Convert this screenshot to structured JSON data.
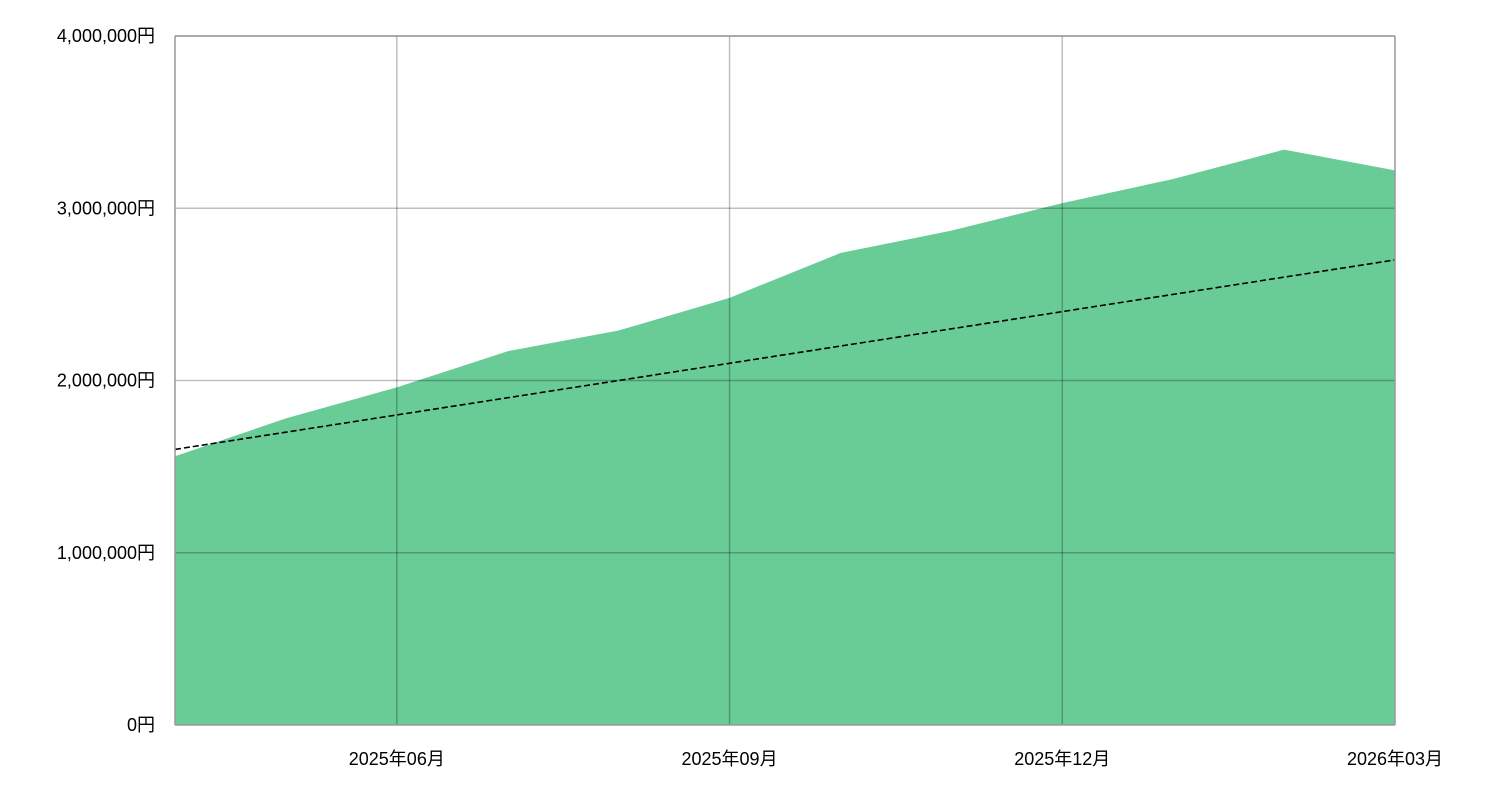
{
  "chart_data": {
    "type": "area",
    "title": "",
    "xlabel": "",
    "ylabel": "",
    "x": [
      "2025-04",
      "2025-05",
      "2025-06",
      "2025-07",
      "2025-08",
      "2025-09",
      "2025-10",
      "2025-11",
      "2025-12",
      "2026-01",
      "2026-02",
      "2026-03"
    ],
    "series": [
      {
        "kind": "area",
        "color": "#69cc96",
        "values": [
          1560000,
          1780000,
          1960000,
          2170000,
          2290000,
          2480000,
          2740000,
          2870000,
          3030000,
          3170000,
          3340000,
          3220000
        ]
      },
      {
        "kind": "dashed-line",
        "color": "#000000",
        "values": [
          1600000,
          1700000,
          1800000,
          1900000,
          2000000,
          2100000,
          2200000,
          2300000,
          2400000,
          2500000,
          2600000,
          2700000
        ]
      }
    ],
    "ylim": [
      0,
      4000000
    ],
    "y_ticks": [
      {
        "value": 0,
        "label": "0円"
      },
      {
        "value": 1000000,
        "label": "1,000,000円"
      },
      {
        "value": 2000000,
        "label": "2,000,000円"
      },
      {
        "value": 3000000,
        "label": "3,000,000円"
      },
      {
        "value": 4000000,
        "label": "4,000,000円"
      }
    ],
    "x_ticks": [
      {
        "value": "2025-06",
        "label": "2025年06月"
      },
      {
        "value": "2025-09",
        "label": "2025年09月"
      },
      {
        "value": "2025-12",
        "label": "2025年12月"
      },
      {
        "value": "2026-03",
        "label": "2026年03月"
      }
    ],
    "grid": true,
    "legend": "none"
  }
}
